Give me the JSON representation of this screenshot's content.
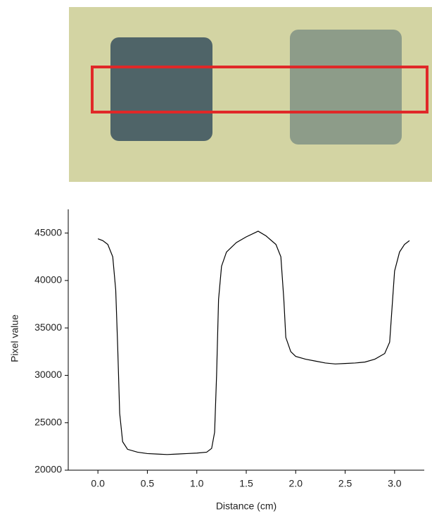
{
  "chart_data": {
    "type": "line",
    "xlabel": "Distance (cm)",
    "ylabel": "Pixel value",
    "x": [
      0.0,
      0.05,
      0.1,
      0.15,
      0.18,
      0.2,
      0.22,
      0.25,
      0.3,
      0.4,
      0.5,
      0.6,
      0.7,
      0.8,
      0.9,
      1.0,
      1.1,
      1.15,
      1.18,
      1.2,
      1.22,
      1.25,
      1.3,
      1.4,
      1.5,
      1.6,
      1.62,
      1.7,
      1.8,
      1.85,
      1.88,
      1.9,
      1.95,
      2.0,
      2.1,
      2.2,
      2.3,
      2.4,
      2.5,
      2.6,
      2.7,
      2.8,
      2.9,
      2.95,
      2.98,
      3.0,
      3.05,
      3.1,
      3.15
    ],
    "series": [
      {
        "color": "#000000",
        "values": [
          44400,
          44200,
          43800,
          42500,
          39000,
          33000,
          26000,
          23000,
          22200,
          21900,
          21750,
          21700,
          21650,
          21700,
          21750,
          21800,
          21900,
          22300,
          24000,
          30000,
          38000,
          41500,
          43000,
          44000,
          44600,
          45100,
          45200,
          44700,
          43800,
          42500,
          38000,
          34000,
          32500,
          32000,
          31700,
          31500,
          31300,
          31200,
          31250,
          31300,
          31400,
          31700,
          32300,
          33500,
          38000,
          41000,
          43000,
          43800,
          44200
        ]
      }
    ],
    "xlim": [
      -0.3,
      3.3
    ],
    "ylim": [
      20000,
      47500
    ],
    "xticks": [
      {
        "value": 0,
        "label": "0.0"
      },
      0.5,
      {
        "value": 1,
        "label": "1.0"
      },
      1.5,
      {
        "value": 2,
        "label": "2.0"
      },
      2.5,
      {
        "value": 3,
        "label": "3.0"
      }
    ],
    "yticks": [
      20000,
      25000,
      30000,
      35000,
      40000,
      45000
    ]
  }
}
